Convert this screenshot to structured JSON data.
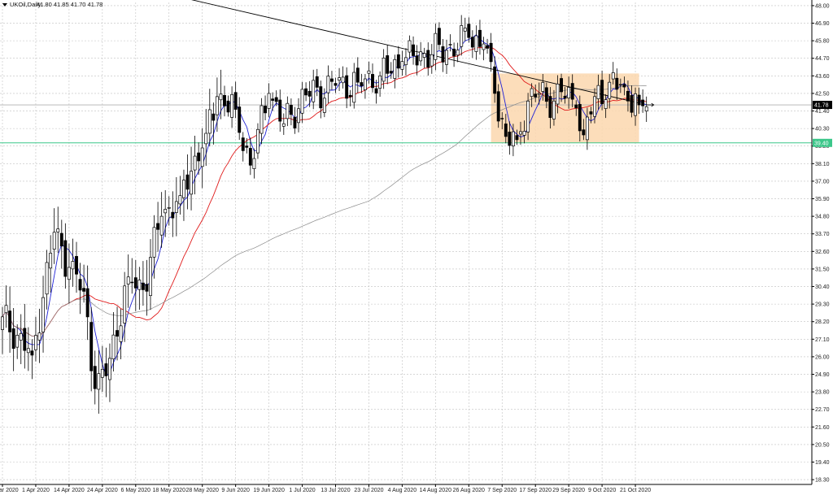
{
  "header": {
    "symbol": "UKOil,Daily",
    "ohlc": "41.80 41.85 41.70 41.78"
  },
  "colors": {
    "background": "#ffffff",
    "grid": "#c0c0c0",
    "bull_candle": "#ffffff",
    "bear_candle": "#000000",
    "ma_fast": "#1f22d6",
    "ma_mid": "#e01b1b",
    "ma_slow": "#8a8a8a",
    "trendline": "#000000",
    "support_line": "#3cc78a",
    "range_box": "#fbd7ae",
    "price_badge": "#000000"
  },
  "price_badges": {
    "current": "41.78",
    "support": "39.40"
  },
  "chart_data": {
    "type": "candlestick",
    "title": "UKOil,Daily",
    "y_axis_ticks": [
      "18.30",
      "19.40",
      "20.50",
      "21.60",
      "22.70",
      "23.80",
      "24.90",
      "26.00",
      "27.10",
      "28.20",
      "29.30",
      "30.40",
      "31.50",
      "32.60",
      "33.70",
      "34.80",
      "35.90",
      "37.00",
      "38.10",
      "39.20",
      "40.30",
      "41.40",
      "42.50",
      "43.60",
      "44.70",
      "45.80",
      "46.90",
      "48.00"
    ],
    "ylim": [
      18.0,
      48.2
    ],
    "x_axis_ticks": [
      {
        "i": 0,
        "label": "20 Mar 2020"
      },
      {
        "i": 9,
        "label": "1 Apr 2020"
      },
      {
        "i": 18,
        "label": "14 Apr 2020"
      },
      {
        "i": 27,
        "label": "24 Apr 2020"
      },
      {
        "i": 36,
        "label": "6 May 2020"
      },
      {
        "i": 45,
        "label": "18 May 2020"
      },
      {
        "i": 54,
        "label": "28 May 2020"
      },
      {
        "i": 63,
        "label": "9 Jun 2020"
      },
      {
        "i": 72,
        "label": "19 Jun 2020"
      },
      {
        "i": 81,
        "label": "1 Jul 2020"
      },
      {
        "i": 90,
        "label": "13 Jul 2020"
      },
      {
        "i": 99,
        "label": "23 Jul 2020"
      },
      {
        "i": 108,
        "label": "4 Aug 2020"
      },
      {
        "i": 117,
        "label": "14 Aug 2020"
      },
      {
        "i": 126,
        "label": "26 Aug 2020"
      },
      {
        "i": 135,
        "label": "7 Sep 2020"
      },
      {
        "i": 144,
        "label": "17 Sep 2020"
      },
      {
        "i": 153,
        "label": "29 Sep 2020"
      },
      {
        "i": 162,
        "label": "9 Oct 2020"
      },
      {
        "i": 171,
        "label": "21 Oct 2020"
      }
    ],
    "horizontal_levels": {
      "current_price": 41.78,
      "support": 39.4
    },
    "range_box": {
      "i_start": 132,
      "i_end": 172,
      "price_low": 39.4,
      "price_high": 43.75
    },
    "trendline": {
      "from": {
        "i": 30,
        "price": 49.5
      },
      "to": {
        "i": 172,
        "price": 41.9
      }
    },
    "key_closes": [
      {
        "i": 0,
        "close": 28.5
      },
      {
        "i": 8,
        "close": 26.1
      },
      {
        "i": 14,
        "close": 33.8
      },
      {
        "i": 18,
        "close": 31.6
      },
      {
        "i": 22,
        "close": 30.1
      },
      {
        "i": 25,
        "close": 24.0
      },
      {
        "i": 28,
        "close": 24.8
      },
      {
        "i": 34,
        "close": 31.0
      },
      {
        "i": 38,
        "close": 30.2
      },
      {
        "i": 43,
        "close": 34.8
      },
      {
        "i": 48,
        "close": 36.1
      },
      {
        "i": 55,
        "close": 40.0
      },
      {
        "i": 58,
        "close": 42.3
      },
      {
        "i": 63,
        "close": 41.5
      },
      {
        "i": 67,
        "close": 38.0
      },
      {
        "i": 72,
        "close": 42.5
      },
      {
        "i": 76,
        "close": 40.6
      },
      {
        "i": 82,
        "close": 42.4
      },
      {
        "i": 90,
        "close": 43.0
      },
      {
        "i": 96,
        "close": 43.2
      },
      {
        "i": 102,
        "close": 43.6
      },
      {
        "i": 108,
        "close": 44.5
      },
      {
        "i": 114,
        "close": 45.0
      },
      {
        "i": 120,
        "close": 45.2
      },
      {
        "i": 126,
        "close": 46.0
      },
      {
        "i": 130,
        "close": 45.6
      },
      {
        "i": 133,
        "close": 42.5
      },
      {
        "i": 136,
        "close": 39.8
      },
      {
        "i": 139,
        "close": 39.6
      },
      {
        "i": 143,
        "close": 42.8
      },
      {
        "i": 147,
        "close": 42.0
      },
      {
        "i": 151,
        "close": 42.6
      },
      {
        "i": 155,
        "close": 41.6
      },
      {
        "i": 157,
        "close": 39.9
      },
      {
        "i": 160,
        "close": 42.3
      },
      {
        "i": 164,
        "close": 43.2
      },
      {
        "i": 168,
        "close": 42.9
      },
      {
        "i": 172,
        "close": 41.78
      }
    ]
  }
}
